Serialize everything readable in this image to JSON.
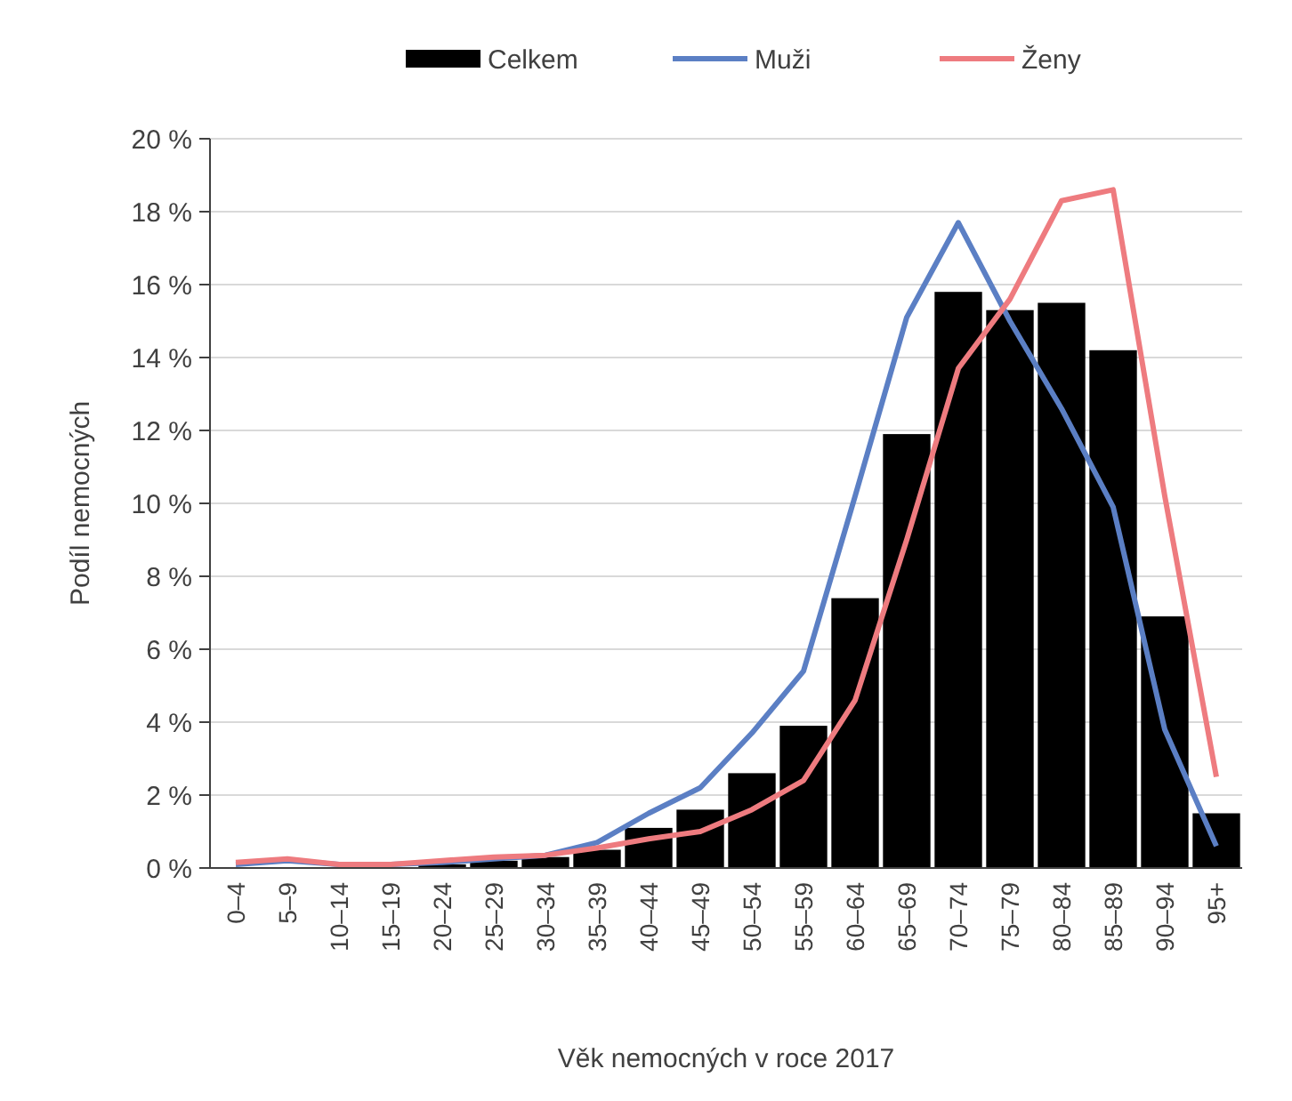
{
  "chart_data": {
    "type": "bar",
    "xlabel": "Věk nemocných v roce 2017",
    "ylabel": "Podíl nemocných",
    "categories": [
      "0–4",
      "5–9",
      "10–14",
      "15–19",
      "20–24",
      "25–29",
      "30–34",
      "35–39",
      "40–44",
      "45–49",
      "50–54",
      "55–59",
      "60–64",
      "65–69",
      "70–74",
      "75–79",
      "80–84",
      "85–89",
      "90–94",
      "95+"
    ],
    "series": [
      {
        "name": "Celkem",
        "color": "#000000",
        "values": [
          0.02,
          0.02,
          null,
          null,
          0.1,
          0.2,
          0.3,
          0.5,
          1.1,
          1.6,
          2.6,
          3.9,
          7.4,
          11.9,
          15.8,
          15.3,
          15.5,
          14.2,
          6.9,
          1.5
        ]
      },
      {
        "name": "Muži",
        "type": "line",
        "color": "#5b7fc4",
        "values": [
          0.1,
          0.2,
          0.1,
          0.1,
          0.15,
          0.25,
          0.35,
          0.7,
          1.5,
          2.2,
          3.7,
          5.4,
          10.2,
          15.1,
          17.7,
          15.0,
          12.6,
          9.9,
          3.8,
          0.6
        ]
      },
      {
        "name": "Ženy",
        "type": "line",
        "color": "#ee7b7f",
        "values": [
          0.15,
          0.25,
          0.1,
          0.1,
          0.2,
          0.3,
          0.35,
          0.55,
          0.8,
          1.0,
          1.6,
          2.4,
          4.6,
          9.0,
          13.7,
          15.6,
          18.3,
          18.6,
          10.2,
          2.5
        ]
      }
    ],
    "ylim": [
      0,
      20
    ],
    "yticks": [
      {
        "value": 0,
        "label": "0 %"
      },
      {
        "value": 2,
        "label": "2 %"
      },
      {
        "value": 4,
        "label": "4 %"
      },
      {
        "value": 6,
        "label": "6 %"
      },
      {
        "value": 8,
        "label": "8 %"
      },
      {
        "value": 10,
        "label": "10 %"
      },
      {
        "value": 12,
        "label": "12 %"
      },
      {
        "value": 14,
        "label": "14 %"
      },
      {
        "value": 16,
        "label": "16 %"
      },
      {
        "value": 18,
        "label": "18 %"
      },
      {
        "value": 20,
        "label": "20 %"
      }
    ],
    "grid": "y",
    "legend": "top",
    "marker": "none",
    "line_style": "solid"
  }
}
